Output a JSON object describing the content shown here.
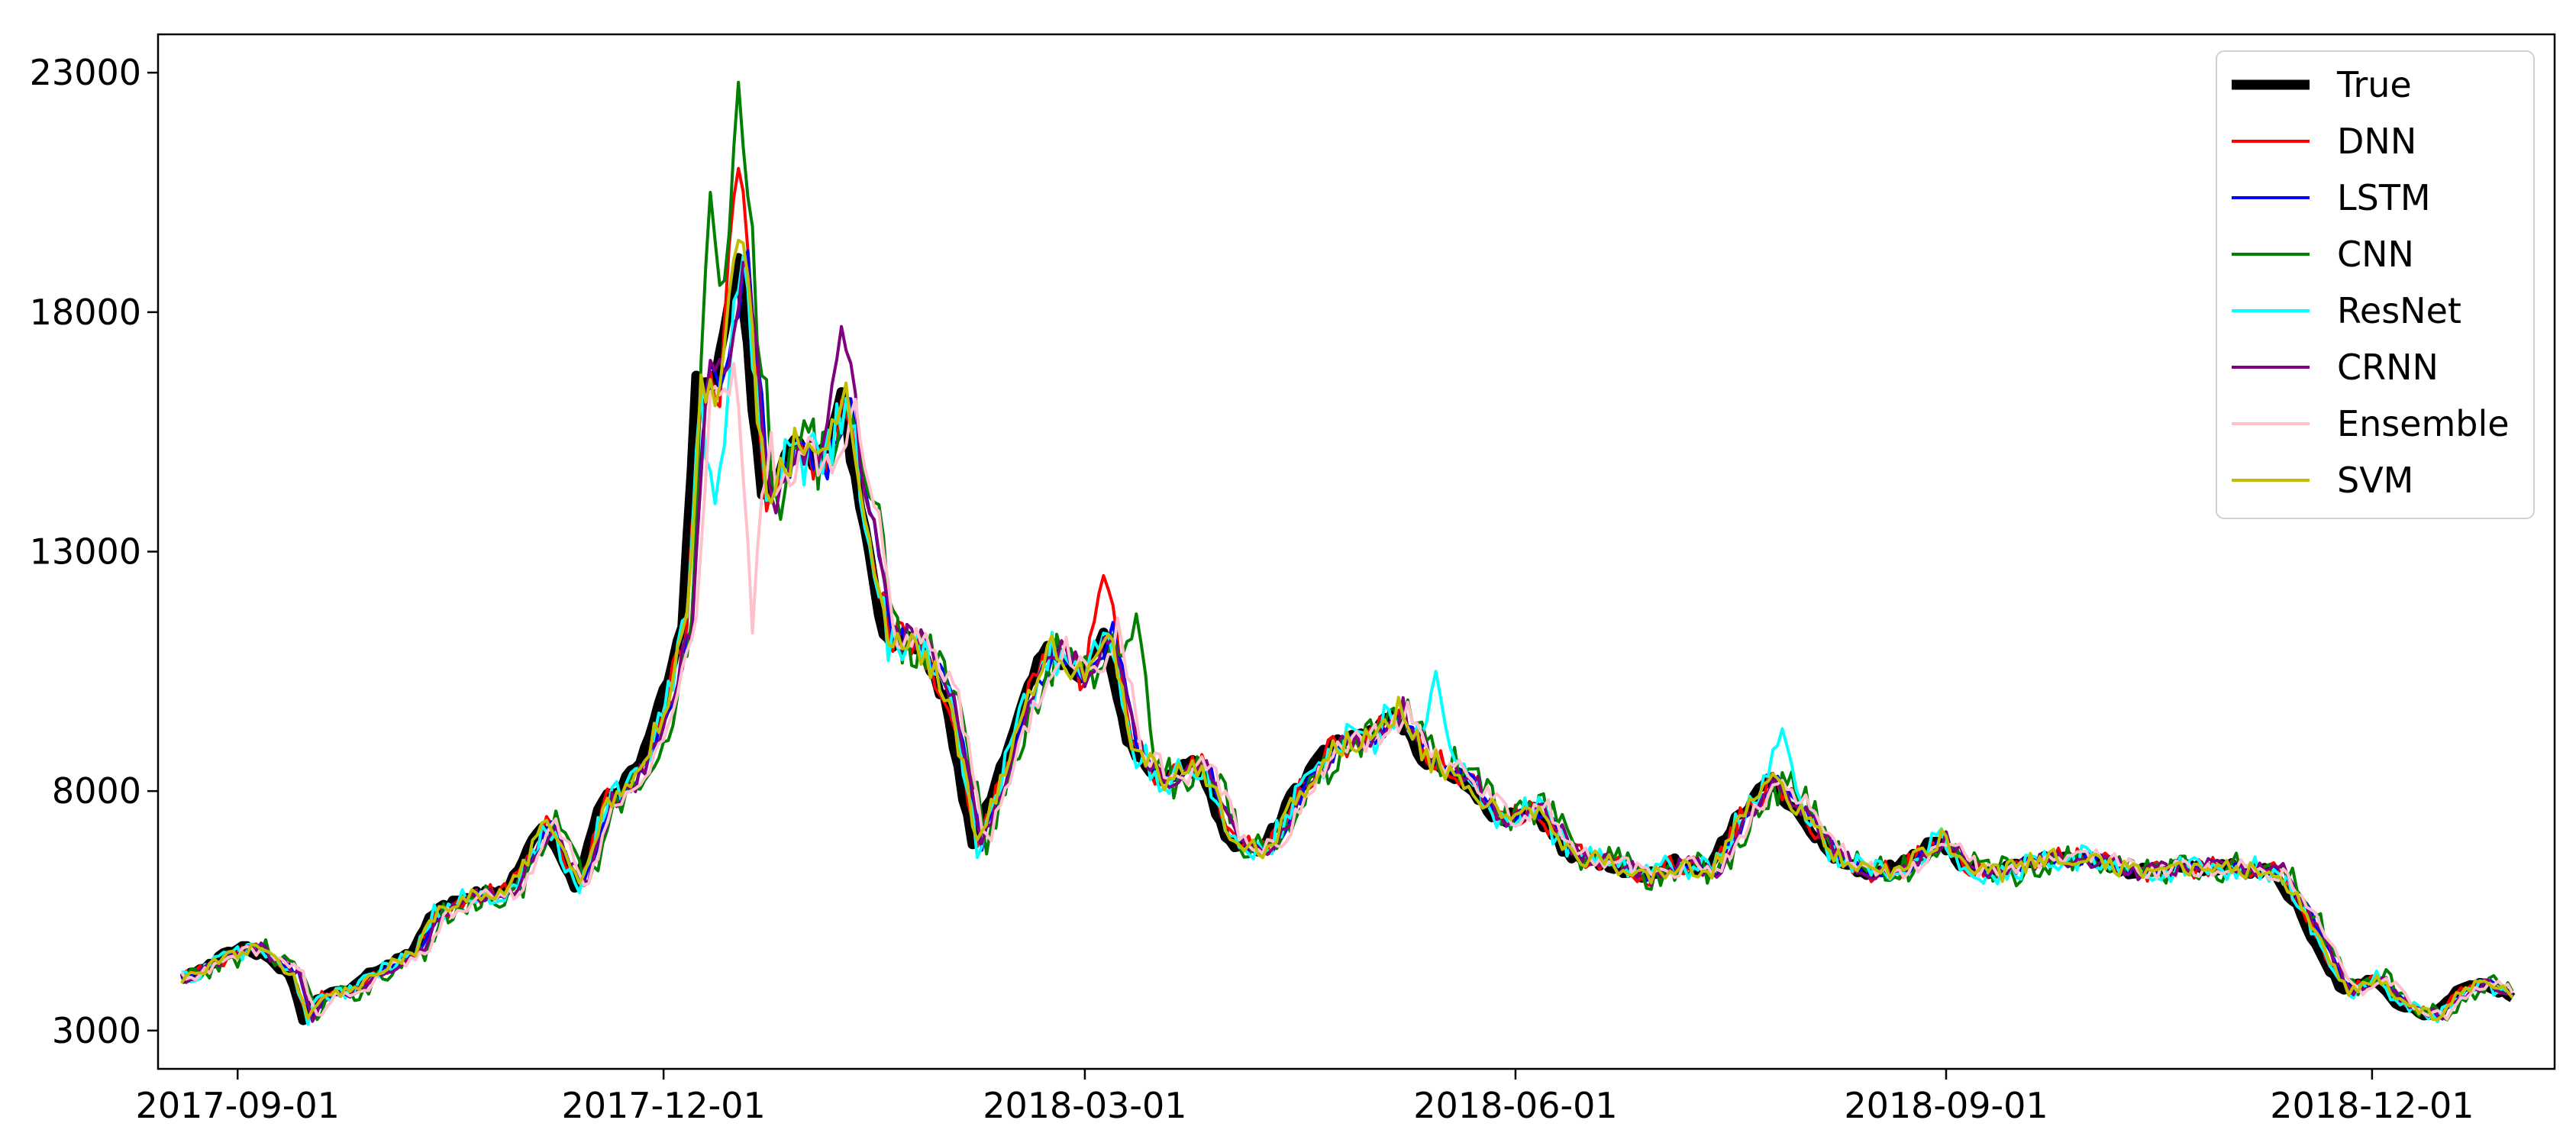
{
  "chart_data": {
    "type": "line",
    "title": "",
    "xlabel": "",
    "ylabel": "",
    "xlim": [
      "2017-08-15",
      "2019-01-09"
    ],
    "ylim": [
      2200,
      23800
    ],
    "x_ticks": [
      {
        "value": "2017-09-01",
        "label": "2017-09-01"
      },
      {
        "value": "2017-12-01",
        "label": "2017-12-01"
      },
      {
        "value": "2018-03-01",
        "label": "2018-03-01"
      },
      {
        "value": "2018-06-01",
        "label": "2018-06-01"
      },
      {
        "value": "2018-09-01",
        "label": "2018-09-01"
      },
      {
        "value": "2018-12-01",
        "label": "2018-12-01"
      }
    ],
    "y_ticks": [
      {
        "value": 3000,
        "label": "3000"
      },
      {
        "value": 8000,
        "label": "8000"
      },
      {
        "value": 13000,
        "label": "13000"
      },
      {
        "value": 18000,
        "label": "18000"
      },
      {
        "value": 23000,
        "label": "23000"
      }
    ],
    "grid": false,
    "legend": "top-right",
    "true_series": {
      "name": "True",
      "color": "#000000",
      "points": [
        [
          "2017-08-20",
          4100
        ],
        [
          "2017-08-25",
          4350
        ],
        [
          "2017-08-30",
          4600
        ],
        [
          "2017-09-03",
          4750
        ],
        [
          "2017-09-07",
          4500
        ],
        [
          "2017-09-12",
          4200
        ],
        [
          "2017-09-15",
          3250
        ],
        [
          "2017-09-18",
          3700
        ],
        [
          "2017-09-25",
          3850
        ],
        [
          "2017-10-01",
          4300
        ],
        [
          "2017-10-08",
          4600
        ],
        [
          "2017-10-12",
          5400
        ],
        [
          "2017-10-20",
          5800
        ],
        [
          "2017-10-28",
          5900
        ],
        [
          "2017-11-05",
          7300
        ],
        [
          "2017-11-12",
          6000
        ],
        [
          "2017-11-18",
          7800
        ],
        [
          "2017-11-25",
          8400
        ],
        [
          "2017-12-01",
          10000
        ],
        [
          "2017-12-05",
          11500
        ],
        [
          "2017-12-08",
          16600
        ],
        [
          "2017-12-12",
          16500
        ],
        [
          "2017-12-17",
          19200
        ],
        [
          "2017-12-22",
          14000
        ],
        [
          "2017-12-28",
          15200
        ],
        [
          "2018-01-03",
          14800
        ],
        [
          "2018-01-08",
          16200
        ],
        [
          "2018-01-12",
          14000
        ],
        [
          "2018-01-17",
          11200
        ],
        [
          "2018-01-23",
          11100
        ],
        [
          "2018-01-30",
          10000
        ],
        [
          "2018-02-05",
          6900
        ],
        [
          "2018-02-10",
          8200
        ],
        [
          "2018-02-16",
          10000
        ],
        [
          "2018-02-21",
          11000
        ],
        [
          "2018-02-28",
          10300
        ],
        [
          "2018-03-05",
          11400
        ],
        [
          "2018-03-10",
          9000
        ],
        [
          "2018-03-17",
          8200
        ],
        [
          "2018-03-25",
          8600
        ],
        [
          "2018-04-01",
          6900
        ],
        [
          "2018-04-08",
          6800
        ],
        [
          "2018-04-15",
          8000
        ],
        [
          "2018-04-22",
          8900
        ],
        [
          "2018-05-01",
          9200
        ],
        [
          "2018-05-06",
          9700
        ],
        [
          "2018-05-12",
          8700
        ],
        [
          "2018-05-20",
          8300
        ],
        [
          "2018-05-28",
          7400
        ],
        [
          "2018-06-05",
          7600
        ],
        [
          "2018-06-12",
          6700
        ],
        [
          "2018-06-20",
          6500
        ],
        [
          "2018-06-28",
          6200
        ],
        [
          "2018-07-05",
          6500
        ],
        [
          "2018-07-12",
          6300
        ],
        [
          "2018-07-18",
          7400
        ],
        [
          "2018-07-25",
          8200
        ],
        [
          "2018-08-01",
          7500
        ],
        [
          "2018-08-08",
          6600
        ],
        [
          "2018-08-14",
          6300
        ],
        [
          "2018-08-22",
          6400
        ],
        [
          "2018-08-30",
          7000
        ],
        [
          "2018-09-05",
          6400
        ],
        [
          "2018-09-12",
          6300
        ],
        [
          "2018-09-20",
          6600
        ],
        [
          "2018-10-01",
          6600
        ],
        [
          "2018-10-10",
          6300
        ],
        [
          "2018-10-20",
          6400
        ],
        [
          "2018-11-01",
          6400
        ],
        [
          "2018-11-10",
          6300
        ],
        [
          "2018-11-15",
          5600
        ],
        [
          "2018-11-20",
          4600
        ],
        [
          "2018-11-25",
          3800
        ],
        [
          "2018-12-01",
          4100
        ],
        [
          "2018-12-07",
          3500
        ],
        [
          "2018-12-14",
          3300
        ],
        [
          "2018-12-19",
          3800
        ],
        [
          "2018-12-24",
          4000
        ],
        [
          "2018-12-31",
          3700
        ]
      ]
    },
    "series": [
      {
        "name": "True",
        "color": "#000000"
      },
      {
        "name": "DNN",
        "color": "#ff0000",
        "spike": [
          [
            "2017-12-17",
            21000
          ],
          [
            "2018-03-05",
            12500
          ]
        ]
      },
      {
        "name": "LSTM",
        "color": "#0000ff",
        "spike": []
      },
      {
        "name": "CNN",
        "color": "#008000",
        "spike": [
          [
            "2017-12-17",
            22800
          ],
          [
            "2017-12-11",
            20500
          ],
          [
            "2018-03-12",
            11700
          ]
        ]
      },
      {
        "name": "ResNet",
        "color": "#00ffff",
        "spike": [
          [
            "2017-12-12",
            14000
          ],
          [
            "2018-05-15",
            10500
          ],
          [
            "2018-07-28",
            9300
          ]
        ]
      },
      {
        "name": "CRNN",
        "color": "#800080",
        "spike": [
          [
            "2018-01-08",
            17700
          ]
        ]
      },
      {
        "name": "Ensemble",
        "color": "#ffc0cb",
        "spike": [
          [
            "2017-12-20",
            11300
          ]
        ]
      },
      {
        "name": "SVM",
        "color": "#bfbf00",
        "spike": [
          [
            "2017-12-17",
            19500
          ]
        ]
      }
    ]
  }
}
